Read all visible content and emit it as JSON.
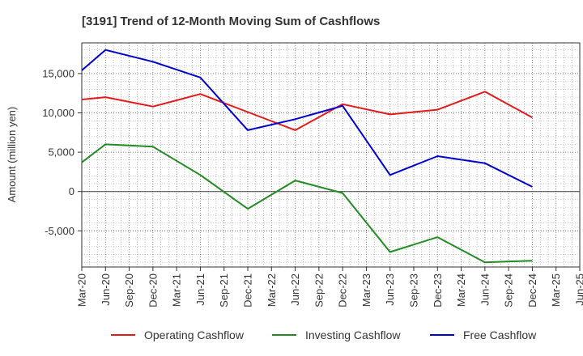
{
  "chart_data": {
    "type": "line",
    "title": "[3191]  Trend of 12-Month Moving Sum of Cashflows",
    "ylabel": "Amount (million yen)",
    "xlabel": "",
    "x_ticks": [
      "Mar-20",
      "Jun-20",
      "Sep-20",
      "Dec-20",
      "Mar-21",
      "Jun-21",
      "Sep-21",
      "Dec-21",
      "Mar-22",
      "Jun-22",
      "Sep-22",
      "Dec-22",
      "Mar-23",
      "Jun-23",
      "Sep-23",
      "Dec-23",
      "Mar-24",
      "Jun-24",
      "Sep-24",
      "Dec-24",
      "Mar-25",
      "Jun-25"
    ],
    "y_ticks": [
      15000,
      10000,
      5000,
      0,
      -5000
    ],
    "y_tick_labels": [
      "15,000",
      "10,000",
      "5,000",
      "0",
      "-5,000"
    ],
    "ylim": [
      -9600,
      18900
    ],
    "grid": true,
    "legend_position": "bottom",
    "series": [
      {
        "name": "Operating Cashflow",
        "color": "#e31a1c",
        "x": [
          "Mar-20",
          "Jun-20",
          "Dec-20",
          "Jun-21",
          "Dec-21",
          "Jun-22",
          "Dec-22",
          "Jun-23",
          "Dec-23",
          "Jun-24",
          "Dec-24"
        ],
        "values": [
          11700,
          12000,
          10800,
          12400,
          10100,
          7800,
          11100,
          9800,
          10400,
          12700,
          9400
        ]
      },
      {
        "name": "Investing Cashflow",
        "color": "#228b22",
        "x": [
          "Mar-20",
          "Jun-20",
          "Dec-20",
          "Jun-21",
          "Dec-21",
          "Jun-22",
          "Dec-22",
          "Jun-23",
          "Dec-23",
          "Jun-24",
          "Dec-24"
        ],
        "values": [
          3700,
          6000,
          5700,
          2100,
          -2200,
          1400,
          -200,
          -7700,
          -5800,
          -9000,
          -8800
        ]
      },
      {
        "name": "Free Cashflow",
        "color": "#0000cc",
        "x": [
          "Mar-20",
          "Jun-20",
          "Dec-20",
          "Jun-21",
          "Dec-21",
          "Jun-22",
          "Dec-22",
          "Jun-23",
          "Dec-23",
          "Jun-24",
          "Dec-24"
        ],
        "values": [
          15400,
          18000,
          16500,
          14500,
          7800,
          9200,
          10900,
          2100,
          4500,
          3600,
          600
        ]
      }
    ]
  }
}
